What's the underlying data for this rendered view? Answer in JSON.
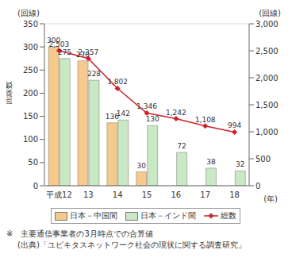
{
  "chart_data": {
    "type": "bar",
    "categories": [
      "平成12",
      "13",
      "14",
      "15",
      "16",
      "17",
      "18"
    ],
    "x_label": "(年)",
    "y_label": "回線数",
    "y_unit_label": "(回線)",
    "y2_unit_label": "(回線)",
    "ylim": [
      0,
      350
    ],
    "yticks": [
      0,
      50,
      100,
      150,
      200,
      250,
      300,
      350
    ],
    "y2lim": [
      0,
      3000
    ],
    "y2ticks": [
      0,
      500,
      {
        "value": 1000,
        "label": "1,000"
      },
      {
        "value": 1500,
        "label": "1,500"
      },
      {
        "value": 2000,
        "label": "2,000"
      },
      {
        "value": 2500,
        "label": "2,500"
      },
      {
        "value": 3000,
        "label": "3,000"
      }
    ],
    "data_labels": true,
    "legend": "bottom",
    "series": [
      {
        "name": "日本－中国間",
        "type": "bar",
        "color": "#f6c98c",
        "values": [
          300,
          270,
          136,
          30,
          0,
          0,
          0
        ]
      },
      {
        "name": "日本－インド間",
        "type": "bar",
        "color": "#c9e8c4",
        "values": [
          275,
          228,
          142,
          130,
          72,
          38,
          32
        ]
      },
      {
        "name": "総数",
        "type": "line",
        "axis": "y2",
        "color": "#d0202a",
        "marker": "diamond",
        "values": [
          2503,
          2357,
          1802,
          1346,
          1242,
          1108,
          994
        ],
        "value_labels": [
          "2,503",
          "2,357",
          "1,802",
          "1,346",
          "1,242",
          "1,108",
          "994"
        ]
      }
    ],
    "notes": [
      "※　主要通信事業者の3月時点での合算値",
      "(出典)「ユビキタスネットワーク社会の現状に関する調査研究」"
    ]
  }
}
